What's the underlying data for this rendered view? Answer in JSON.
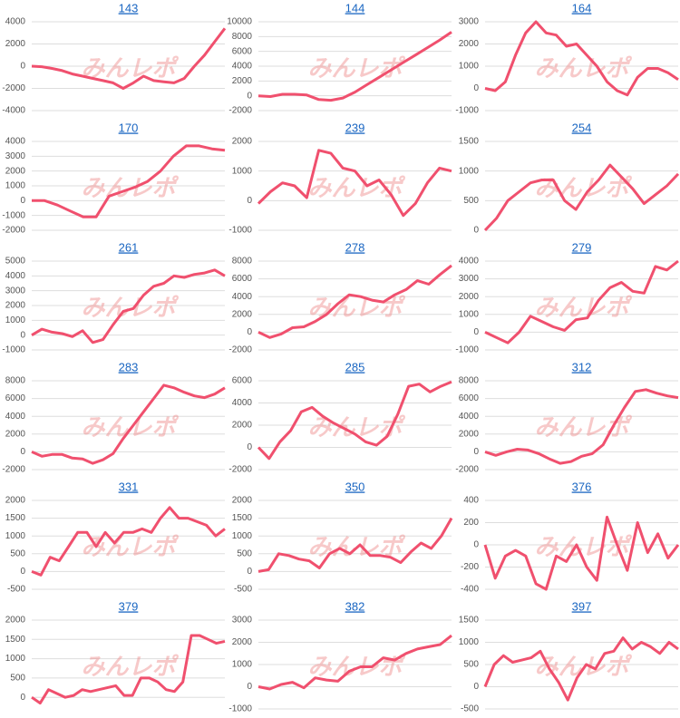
{
  "watermark": "みんレポ",
  "chart_data": [
    {
      "type": "line",
      "title": "143",
      "color": "#f0506e",
      "grid": true,
      "ylim": [
        -4000,
        4000
      ],
      "yticks": [
        -4000,
        -2000,
        0,
        2000,
        4000
      ],
      "values": [
        0,
        -50,
        -200,
        -400,
        -700,
        -900,
        -1100,
        -1300,
        -1500,
        -2000,
        -1500,
        -900,
        -1300,
        -1400,
        -1500,
        -1100,
        0,
        1000,
        2200,
        3400
      ]
    },
    {
      "type": "line",
      "title": "144",
      "color": "#f0506e",
      "grid": true,
      "ylim": [
        -2000,
        10000
      ],
      "yticks": [
        -2000,
        0,
        2000,
        4000,
        6000,
        8000,
        10000
      ],
      "values": [
        0,
        -100,
        200,
        200,
        100,
        -500,
        -600,
        -300,
        500,
        1500,
        2500,
        3500,
        4500,
        5500,
        6500,
        7500,
        8600
      ]
    },
    {
      "type": "line",
      "title": "164",
      "color": "#f0506e",
      "grid": true,
      "ylim": [
        -1000,
        3000
      ],
      "yticks": [
        -1000,
        0,
        1000,
        2000,
        3000
      ],
      "values": [
        0,
        -100,
        300,
        1500,
        2500,
        3000,
        2500,
        2400,
        1900,
        2000,
        1500,
        1000,
        300,
        -100,
        -300,
        500,
        900,
        900,
        700,
        400
      ]
    },
    {
      "type": "line",
      "title": "170",
      "color": "#f0506e",
      "grid": true,
      "ylim": [
        -2000,
        4000
      ],
      "yticks": [
        -2000,
        -1000,
        0,
        1000,
        2000,
        3000,
        4000
      ],
      "values": [
        0,
        0,
        -300,
        -700,
        -1100,
        -1100,
        300,
        600,
        900,
        1300,
        2000,
        3000,
        3700,
        3700,
        3500,
        3400
      ]
    },
    {
      "type": "line",
      "title": "239",
      "color": "#f0506e",
      "grid": true,
      "ylim": [
        -1000,
        2000
      ],
      "yticks": [
        -1000,
        0,
        1000,
        2000
      ],
      "values": [
        -100,
        300,
        600,
        500,
        100,
        1700,
        1600,
        1100,
        1000,
        500,
        700,
        200,
        -500,
        -100,
        600,
        1100,
        1000
      ]
    },
    {
      "type": "line",
      "title": "254",
      "color": "#f0506e",
      "grid": true,
      "ylim": [
        0,
        1500
      ],
      "yticks": [
        0,
        500,
        1000,
        1500
      ],
      "values": [
        0,
        200,
        500,
        650,
        800,
        850,
        850,
        500,
        350,
        650,
        850,
        1100,
        900,
        700,
        450,
        600,
        750,
        950
      ]
    },
    {
      "type": "line",
      "title": "261",
      "color": "#f0506e",
      "grid": true,
      "ylim": [
        -1000,
        5000
      ],
      "yticks": [
        -1000,
        0,
        1000,
        2000,
        3000,
        4000,
        5000
      ],
      "values": [
        0,
        400,
        200,
        100,
        -100,
        300,
        -500,
        -300,
        700,
        1600,
        1800,
        2700,
        3300,
        3500,
        4000,
        3900,
        4100,
        4200,
        4400,
        4000
      ]
    },
    {
      "type": "line",
      "title": "278",
      "color": "#f0506e",
      "grid": true,
      "ylim": [
        -2000,
        8000
      ],
      "yticks": [
        -2000,
        0,
        2000,
        4000,
        6000,
        8000
      ],
      "values": [
        0,
        -600,
        -200,
        500,
        600,
        1200,
        2000,
        3200,
        4200,
        4000,
        3600,
        3400,
        4200,
        4800,
        5800,
        5400,
        6500,
        7500
      ]
    },
    {
      "type": "line",
      "title": "279",
      "color": "#f0506e",
      "grid": true,
      "ylim": [
        -1000,
        4000
      ],
      "yticks": [
        -1000,
        0,
        1000,
        2000,
        3000,
        4000
      ],
      "values": [
        0,
        -300,
        -600,
        0,
        900,
        600,
        300,
        100,
        700,
        800,
        1800,
        2500,
        2800,
        2300,
        2200,
        3700,
        3500,
        4000
      ]
    },
    {
      "type": "line",
      "title": "283",
      "color": "#f0506e",
      "grid": true,
      "ylim": [
        -2000,
        8000
      ],
      "yticks": [
        -2000,
        0,
        2000,
        4000,
        6000,
        8000
      ],
      "values": [
        0,
        -500,
        -300,
        -300,
        -700,
        -800,
        -1300,
        -900,
        -200,
        1500,
        3000,
        4500,
        6000,
        7500,
        7200,
        6700,
        6300,
        6100,
        6500,
        7200
      ]
    },
    {
      "type": "line",
      "title": "285",
      "color": "#f0506e",
      "grid": true,
      "ylim": [
        -2000,
        6000
      ],
      "yticks": [
        -2000,
        0,
        2000,
        4000,
        6000
      ],
      "values": [
        0,
        -1000,
        500,
        1500,
        3200,
        3600,
        2800,
        2200,
        1700,
        1200,
        500,
        200,
        1000,
        3000,
        5500,
        5700,
        5000,
        5500,
        5900
      ]
    },
    {
      "type": "line",
      "title": "312",
      "color": "#f0506e",
      "grid": true,
      "ylim": [
        -2000,
        8000
      ],
      "yticks": [
        -2000,
        0,
        2000,
        4000,
        6000,
        8000
      ],
      "values": [
        0,
        -400,
        0,
        300,
        200,
        -200,
        -800,
        -1300,
        -1100,
        -500,
        -200,
        800,
        3000,
        5000,
        6800,
        7000,
        6600,
        6300,
        6100
      ]
    },
    {
      "type": "line",
      "title": "331",
      "color": "#f0506e",
      "grid": true,
      "ylim": [
        -500,
        2000
      ],
      "yticks": [
        -500,
        0,
        500,
        1000,
        1500,
        2000
      ],
      "values": [
        0,
        -100,
        400,
        300,
        700,
        1100,
        1100,
        700,
        1100,
        800,
        1100,
        1100,
        1200,
        1100,
        1500,
        1800,
        1500,
        1500,
        1400,
        1300,
        1000,
        1200
      ]
    },
    {
      "type": "line",
      "title": "350",
      "color": "#f0506e",
      "grid": true,
      "ylim": [
        -500,
        2000
      ],
      "yticks": [
        -500,
        0,
        500,
        1000,
        1500,
        2000
      ],
      "values": [
        0,
        50,
        500,
        450,
        350,
        300,
        100,
        500,
        650,
        500,
        750,
        450,
        450,
        400,
        250,
        550,
        800,
        650,
        1000,
        1500
      ]
    },
    {
      "type": "line",
      "title": "376",
      "color": "#f0506e",
      "grid": true,
      "ylim": [
        -400,
        400
      ],
      "yticks": [
        -400,
        -200,
        0,
        200,
        400
      ],
      "values": [
        0,
        -300,
        -100,
        -50,
        -100,
        -350,
        -400,
        -100,
        -150,
        0,
        -200,
        -320,
        250,
        0,
        -230,
        200,
        -70,
        100,
        -120,
        0
      ]
    },
    {
      "type": "line",
      "title": "379",
      "color": "#f0506e",
      "grid": true,
      "ylim": [
        -300,
        2000
      ],
      "yticks": [
        0,
        500,
        1000,
        1500,
        2000
      ],
      "values": [
        0,
        -150,
        200,
        100,
        0,
        50,
        200,
        150,
        200,
        250,
        300,
        50,
        50,
        500,
        500,
        400,
        200,
        150,
        400,
        1600,
        1600,
        1500,
        1400,
        1450
      ]
    },
    {
      "type": "line",
      "title": "382",
      "color": "#f0506e",
      "grid": true,
      "ylim": [
        -1000,
        3000
      ],
      "yticks": [
        -1000,
        0,
        1000,
        2000,
        3000
      ],
      "values": [
        0,
        -100,
        100,
        200,
        -50,
        400,
        300,
        250,
        700,
        900,
        900,
        1300,
        1200,
        1500,
        1700,
        1800,
        1900,
        2300
      ]
    },
    {
      "type": "line",
      "title": "397",
      "color": "#f0506e",
      "grid": true,
      "ylim": [
        -500,
        1500
      ],
      "yticks": [
        -500,
        0,
        500,
        1000,
        1500
      ],
      "values": [
        0,
        500,
        700,
        550,
        600,
        650,
        800,
        400,
        100,
        -300,
        200,
        500,
        400,
        750,
        800,
        1100,
        850,
        1000,
        900,
        750,
        1000,
        850
      ]
    }
  ]
}
